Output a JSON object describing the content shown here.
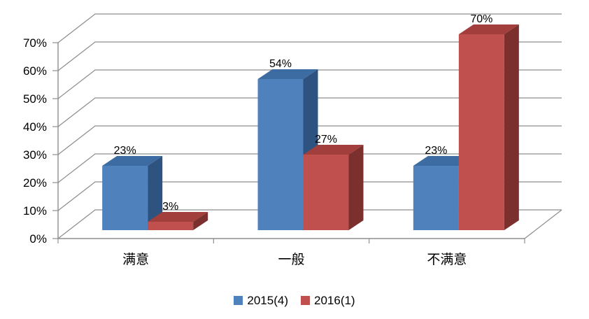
{
  "chart_data": {
    "type": "bar",
    "subtype": "3d-clustered-column",
    "title": "",
    "categories": [
      "满意",
      "一般",
      "不满意"
    ],
    "series": [
      {
        "name": "2015(4)",
        "values": [
          23,
          54,
          23
        ],
        "colors": {
          "front": "#4F81BD",
          "top": "#3D6CA3",
          "side": "#2F5380"
        }
      },
      {
        "name": "2016(1)",
        "values": [
          3,
          27,
          70
        ],
        "colors": {
          "front": "#C0504D",
          "top": "#A23E3B",
          "side": "#7B302E"
        }
      }
    ],
    "data_labels": {
      "show": true,
      "values": [
        [
          "23%",
          "54%",
          "23%"
        ],
        [
          "3%",
          "27%",
          "70%"
        ]
      ]
    },
    "value_axis": {
      "min": 0,
      "max": 70,
      "step": 10,
      "unit": "%",
      "tick_labels": [
        "0%",
        "10%",
        "20%",
        "30%",
        "40%",
        "50%",
        "60%",
        "70%"
      ]
    },
    "legend": {
      "position": "bottom",
      "entries": [
        "2015(4)",
        "2016(1)"
      ]
    },
    "grid": true,
    "colors": {
      "gridline": "#8E8E8E",
      "axis": "#8E8E8E",
      "text": "#000000",
      "background": "#FFFFFF"
    }
  }
}
